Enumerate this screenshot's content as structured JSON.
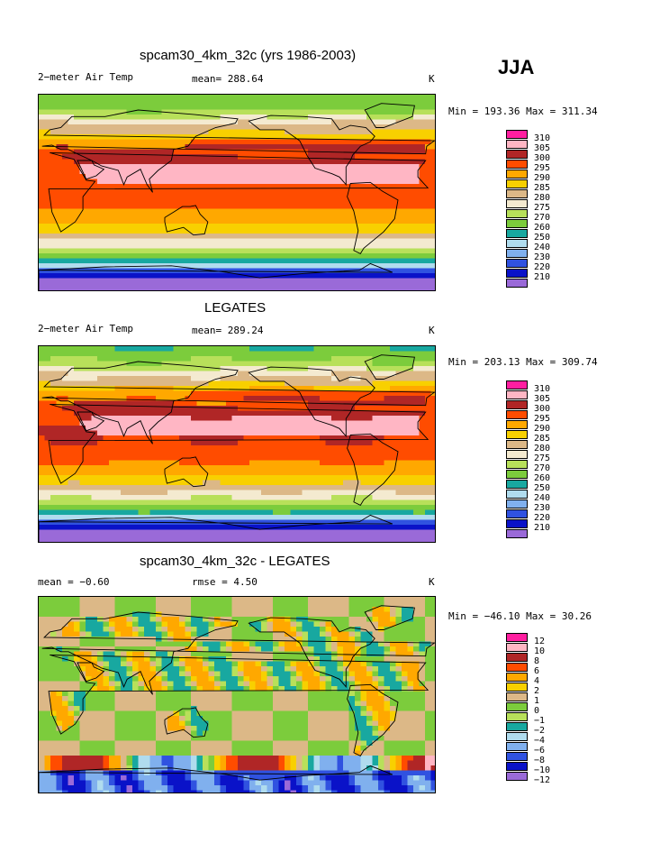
{
  "season": "JJA",
  "colors": {
    "temp": [
      "#9a6ad8",
      "#0a12c8",
      "#3052e0",
      "#80b0ee",
      "#b0dcee",
      "#18a8a0",
      "#7ccc3c",
      "#b8e05a",
      "#f4ead0",
      "#dcb887",
      "#f8d000",
      "#ffa800",
      "#ff4c00",
      "#b02626",
      "#ffb6c4",
      "#ff1ea0"
    ],
    "diff": [
      "#9a6ad8",
      "#0a12c8",
      "#3052e0",
      "#80b0ee",
      "#b0dcee",
      "#18a8a0",
      "#b8e05a",
      "#7ccc3c",
      "#dcb887",
      "#f8d000",
      "#ffa800",
      "#ff4c00",
      "#b02626",
      "#ffb6c4",
      "#ff1ea0"
    ]
  },
  "chart_data": [
    {
      "type": "heatmap",
      "title": "spcam30_4km_32c (yrs 1986-2003)",
      "left_label": "2−meter Air Temp",
      "center_label": "mean= 288.64",
      "units": "K",
      "stats": "Min = 193.36 Max = 311.34",
      "mean": 288.64,
      "min": 193.36,
      "max": 311.34,
      "legend_levels": [
        "310",
        "305",
        "300",
        "295",
        "290",
        "285",
        "280",
        "275",
        "270",
        "260",
        "250",
        "240",
        "230",
        "220",
        "210"
      ]
    },
    {
      "type": "heatmap",
      "title": "LEGATES",
      "left_label": "2−meter Air Temp",
      "center_label": "mean= 289.24",
      "units": "K",
      "stats": "Min = 203.13 Max = 309.74",
      "mean": 289.24,
      "min": 203.13,
      "max": 309.74,
      "legend_levels": [
        "310",
        "305",
        "300",
        "295",
        "290",
        "285",
        "280",
        "275",
        "270",
        "260",
        "250",
        "240",
        "230",
        "220",
        "210"
      ]
    },
    {
      "type": "heatmap",
      "title": "spcam30_4km_32c - LEGATES",
      "left_label": "mean =   −0.60",
      "center_label": "rmse =    4.50",
      "units": "K",
      "stats": "Min = −46.10 Max =  30.26",
      "mean": -0.6,
      "rmse": 4.5,
      "min": -46.1,
      "max": 30.26,
      "legend_levels": [
        "12",
        "10",
        "8",
        "6",
        "4",
        "2",
        "1",
        "0",
        "−1",
        "−2",
        "−4",
        "−6",
        "−8",
        "−10",
        "−12"
      ]
    }
  ]
}
